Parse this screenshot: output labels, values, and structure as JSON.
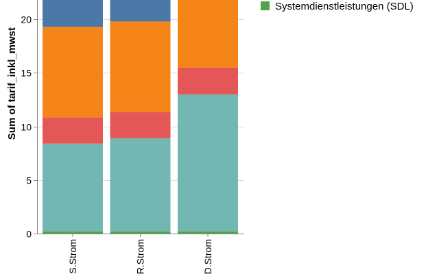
{
  "chart_data": {
    "type": "bar",
    "stacked": true,
    "orientation": "vertical",
    "ylabel": "Sum of tarif_inkl_mwst",
    "xlabel": "",
    "ylim": [
      0,
      22
    ],
    "yticks": [
      0,
      5,
      10,
      15,
      20
    ],
    "grid": true,
    "categories": [
      ".S.Strom",
      ".R.Strom",
      ".D.Strom"
    ],
    "series": [
      {
        "name": "Systemdienstleistungen (SDL)",
        "color": "#54a24b",
        "values": [
          0.2,
          0.2,
          0.2
        ]
      },
      {
        "name": "",
        "color": "#72b7b2",
        "values": [
          8.2,
          8.7,
          12.8
        ]
      },
      {
        "name": "",
        "color": "#e45756",
        "values": [
          2.45,
          2.45,
          2.5
        ]
      },
      {
        "name": "",
        "color": "#f58518",
        "values": [
          8.45,
          8.45,
          7.5
        ]
      },
      {
        "name": "",
        "color": "#4c78a8",
        "values": [
          3.0,
          2.5,
          0.0
        ]
      }
    ],
    "legend": {
      "position": "top-right",
      "entries": [
        {
          "label": "Systemdienstleistungen (SDL)",
          "color": "#54a24b"
        }
      ]
    }
  }
}
